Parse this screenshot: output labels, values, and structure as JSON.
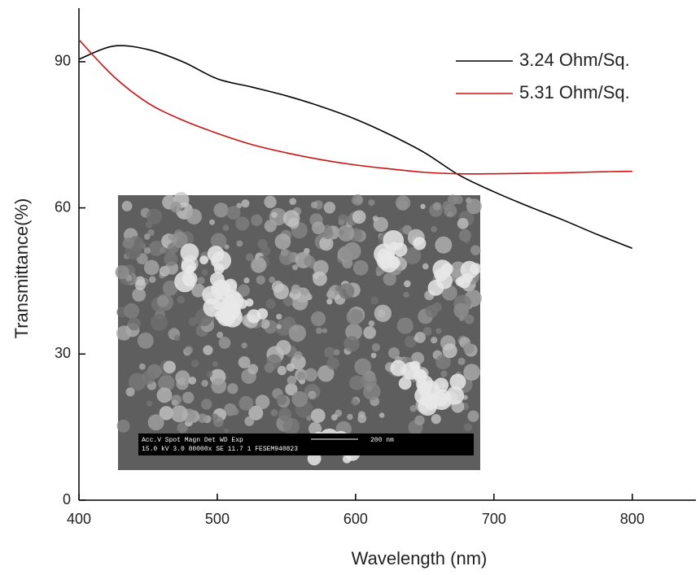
{
  "chart_data": {
    "type": "line",
    "x_label": "Wavelength (nm)",
    "y_label": "Transmittance(%)",
    "xlim": [
      400,
      846
    ],
    "ylim": [
      0,
      101
    ],
    "xticks": [
      400,
      500,
      600,
      700,
      800
    ],
    "yticks": [
      0,
      30,
      60,
      90
    ],
    "legend": "upper right",
    "x": [
      400,
      425,
      450,
      475,
      500,
      525,
      550,
      575,
      600,
      625,
      650,
      675,
      700,
      725,
      750,
      775,
      800
    ],
    "series": [
      {
        "name": "3.24 Ohm/Sq.",
        "color": "#000000",
        "values": [
          90.5,
          93.2,
          92.5,
          90,
          86.5,
          84.8,
          83,
          80.8,
          78.2,
          75,
          71.3,
          66.7,
          63.3,
          60.3,
          57.5,
          54.5,
          51.7
        ]
      },
      {
        "name": "5.31 Ohm/Sq.",
        "color": "#cc1111",
        "values": [
          94.5,
          87,
          81.5,
          78,
          75.3,
          73,
          71.3,
          69.9,
          68.8,
          68,
          67.3,
          67,
          67,
          67.1,
          67.2,
          67.4,
          67.5
        ]
      }
    ],
    "inset": {
      "header": "Acc.V   Spot Magn     Det   WD   Exp",
      "scale": "200 nm",
      "footer": "15.0 kV 3.0   80000x   SE     11.7  1        FESEM940823"
    }
  }
}
